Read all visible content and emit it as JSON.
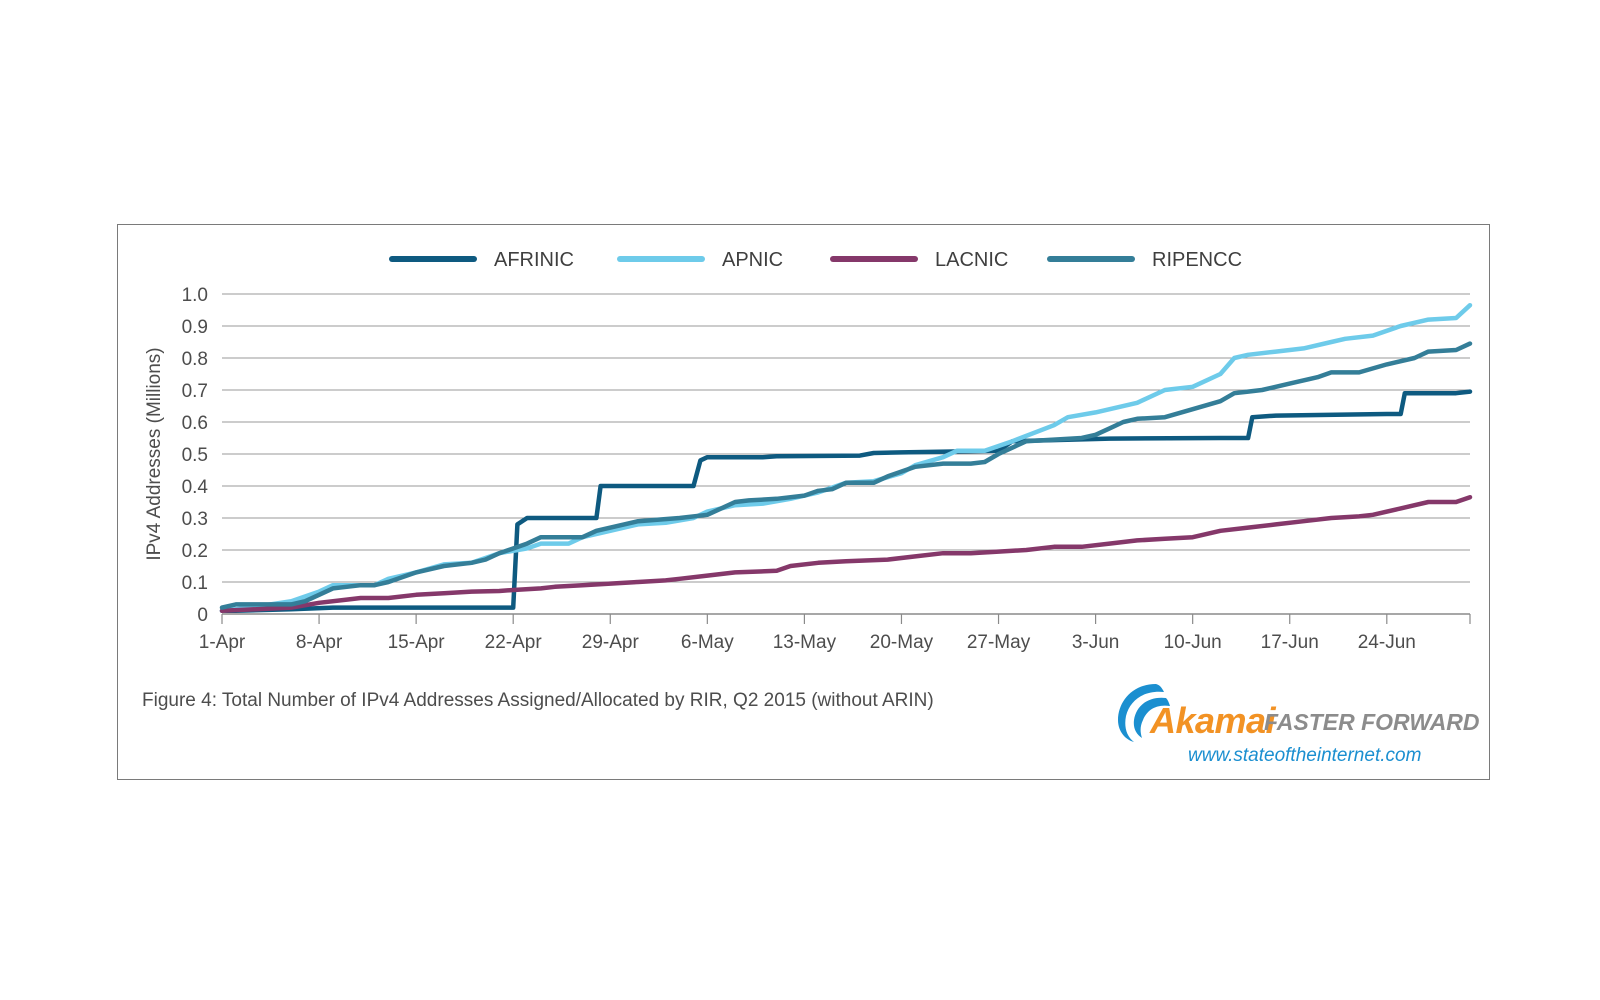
{
  "caption": "Figure 4: Total Number of IPv4 Addresses Assigned/Allocated by RIR, Q2 2015 (without ARIN)",
  "logo": {
    "brand": "Akamai",
    "tagline": "FASTER FORWARD",
    "url": "www.stateoftheinternet.com",
    "icon": "akamai-wave-logo"
  },
  "chart_data": {
    "type": "line",
    "title": "",
    "xlabel": "",
    "ylabel": "IPv4 Addresses (Millions)",
    "ylim": [
      0,
      1.0
    ],
    "yticks": [
      "0",
      "0.1",
      "0.2",
      "0.3",
      "0.4",
      "0.5",
      "0.6",
      "0.7",
      "0.8",
      "0.9",
      "1.0"
    ],
    "x_start": "1-Apr",
    "x_end": "30-Jun",
    "xticks": [
      "1-Apr",
      "8-Apr",
      "15-Apr",
      "22-Apr",
      "29-Apr",
      "6-May",
      "13-May",
      "20-May",
      "27-May",
      "3-Jun",
      "10-Jun",
      "17-Jun",
      "24-Jun"
    ],
    "xtick_days": [
      0,
      7,
      14,
      21,
      28,
      35,
      42,
      49,
      56,
      63,
      70,
      77,
      84
    ],
    "grid": "horizontal",
    "legend_position": "top-center",
    "series": [
      {
        "name": "AFRINIC",
        "color": "#0e5a80",
        "points": [
          [
            0,
            0.01
          ],
          [
            1,
            0.01
          ],
          [
            5,
            0.015
          ],
          [
            8,
            0.02
          ],
          [
            20,
            0.02
          ],
          [
            21,
            0.02
          ],
          [
            21.3,
            0.28
          ],
          [
            22,
            0.3
          ],
          [
            27,
            0.3
          ],
          [
            27.3,
            0.4
          ],
          [
            34,
            0.4
          ],
          [
            34.5,
            0.48
          ],
          [
            35,
            0.49
          ],
          [
            39,
            0.49
          ],
          [
            40,
            0.493
          ],
          [
            46,
            0.495
          ],
          [
            47,
            0.503
          ],
          [
            49,
            0.505
          ],
          [
            56,
            0.51
          ],
          [
            57,
            0.54
          ],
          [
            64,
            0.548
          ],
          [
            72,
            0.55
          ],
          [
            74,
            0.55
          ],
          [
            74.3,
            0.615
          ],
          [
            76,
            0.62
          ],
          [
            84,
            0.625
          ],
          [
            85,
            0.625
          ],
          [
            85.3,
            0.69
          ],
          [
            89,
            0.69
          ],
          [
            90,
            0.695
          ]
        ]
      },
      {
        "name": "APNIC",
        "color": "#6ecbea",
        "points": [
          [
            0,
            0.01
          ],
          [
            2,
            0.02
          ],
          [
            5,
            0.04
          ],
          [
            7,
            0.07
          ],
          [
            8,
            0.09
          ],
          [
            11,
            0.09
          ],
          [
            12,
            0.11
          ],
          [
            14,
            0.13
          ],
          [
            16,
            0.155
          ],
          [
            18,
            0.16
          ],
          [
            19,
            0.175
          ],
          [
            20,
            0.19
          ],
          [
            22,
            0.205
          ],
          [
            23,
            0.22
          ],
          [
            25,
            0.22
          ],
          [
            26,
            0.24
          ],
          [
            28,
            0.26
          ],
          [
            30,
            0.28
          ],
          [
            32,
            0.285
          ],
          [
            34,
            0.3
          ],
          [
            35,
            0.32
          ],
          [
            37,
            0.34
          ],
          [
            39,
            0.345
          ],
          [
            41,
            0.36
          ],
          [
            43,
            0.38
          ],
          [
            45,
            0.41
          ],
          [
            47,
            0.415
          ],
          [
            49,
            0.44
          ],
          [
            50,
            0.465
          ],
          [
            52,
            0.49
          ],
          [
            53,
            0.51
          ],
          [
            55,
            0.51
          ],
          [
            57,
            0.54
          ],
          [
            60,
            0.59
          ],
          [
            61,
            0.615
          ],
          [
            63,
            0.63
          ],
          [
            66,
            0.66
          ],
          [
            68,
            0.7
          ],
          [
            70,
            0.71
          ],
          [
            72,
            0.75
          ],
          [
            73,
            0.8
          ],
          [
            74,
            0.81
          ],
          [
            76,
            0.82
          ],
          [
            78,
            0.83
          ],
          [
            80,
            0.85
          ],
          [
            81,
            0.86
          ],
          [
            83,
            0.87
          ],
          [
            85,
            0.9
          ],
          [
            87,
            0.92
          ],
          [
            89,
            0.925
          ],
          [
            90,
            0.965
          ]
        ]
      },
      {
        "name": "LACNIC",
        "color": "#85386a",
        "points": [
          [
            0,
            0.01
          ],
          [
            5,
            0.02
          ],
          [
            7,
            0.035
          ],
          [
            9,
            0.045
          ],
          [
            10,
            0.05
          ],
          [
            12,
            0.05
          ],
          [
            14,
            0.06
          ],
          [
            16,
            0.065
          ],
          [
            18,
            0.07
          ],
          [
            20,
            0.072
          ],
          [
            21,
            0.075
          ],
          [
            23,
            0.08
          ],
          [
            24,
            0.085
          ],
          [
            26,
            0.09
          ],
          [
            28,
            0.095
          ],
          [
            30,
            0.1
          ],
          [
            32,
            0.105
          ],
          [
            33,
            0.11
          ],
          [
            35,
            0.12
          ],
          [
            37,
            0.13
          ],
          [
            40,
            0.135
          ],
          [
            41,
            0.15
          ],
          [
            43,
            0.16
          ],
          [
            45,
            0.165
          ],
          [
            48,
            0.17
          ],
          [
            50,
            0.18
          ],
          [
            52,
            0.19
          ],
          [
            54,
            0.19
          ],
          [
            56,
            0.195
          ],
          [
            58,
            0.2
          ],
          [
            60,
            0.21
          ],
          [
            62,
            0.21
          ],
          [
            64,
            0.22
          ],
          [
            66,
            0.23
          ],
          [
            68,
            0.235
          ],
          [
            70,
            0.24
          ],
          [
            72,
            0.26
          ],
          [
            74,
            0.27
          ],
          [
            76,
            0.28
          ],
          [
            78,
            0.29
          ],
          [
            80,
            0.3
          ],
          [
            82,
            0.305
          ],
          [
            83,
            0.31
          ],
          [
            85,
            0.33
          ],
          [
            87,
            0.35
          ],
          [
            89,
            0.35
          ],
          [
            90,
            0.365
          ]
        ]
      },
      {
        "name": "RIPENCC",
        "color": "#347e98",
        "points": [
          [
            0,
            0.02
          ],
          [
            1,
            0.03
          ],
          [
            5,
            0.03
          ],
          [
            6,
            0.04
          ],
          [
            7,
            0.06
          ],
          [
            8,
            0.08
          ],
          [
            10,
            0.09
          ],
          [
            11,
            0.09
          ],
          [
            12,
            0.1
          ],
          [
            14,
            0.13
          ],
          [
            16,
            0.15
          ],
          [
            18,
            0.16
          ],
          [
            19,
            0.17
          ],
          [
            20,
            0.19
          ],
          [
            22,
            0.22
          ],
          [
            23,
            0.24
          ],
          [
            26,
            0.24
          ],
          [
            27,
            0.26
          ],
          [
            29,
            0.28
          ],
          [
            30,
            0.29
          ],
          [
            33,
            0.3
          ],
          [
            35,
            0.31
          ],
          [
            36,
            0.33
          ],
          [
            37,
            0.35
          ],
          [
            38,
            0.355
          ],
          [
            40,
            0.36
          ],
          [
            42,
            0.37
          ],
          [
            43,
            0.385
          ],
          [
            44,
            0.39
          ],
          [
            45,
            0.41
          ],
          [
            47,
            0.41
          ],
          [
            48,
            0.43
          ],
          [
            50,
            0.46
          ],
          [
            52,
            0.47
          ],
          [
            54,
            0.47
          ],
          [
            55,
            0.475
          ],
          [
            56,
            0.5
          ],
          [
            58,
            0.54
          ],
          [
            60,
            0.545
          ],
          [
            62,
            0.55
          ],
          [
            63,
            0.56
          ],
          [
            64,
            0.58
          ],
          [
            65,
            0.6
          ],
          [
            66,
            0.61
          ],
          [
            68,
            0.615
          ],
          [
            70,
            0.64
          ],
          [
            72,
            0.665
          ],
          [
            73,
            0.69
          ],
          [
            74,
            0.695
          ],
          [
            75,
            0.7
          ],
          [
            77,
            0.72
          ],
          [
            79,
            0.74
          ],
          [
            80,
            0.755
          ],
          [
            82,
            0.755
          ],
          [
            84,
            0.78
          ],
          [
            86,
            0.8
          ],
          [
            87,
            0.82
          ],
          [
            89,
            0.825
          ],
          [
            90,
            0.845
          ]
        ]
      }
    ]
  }
}
